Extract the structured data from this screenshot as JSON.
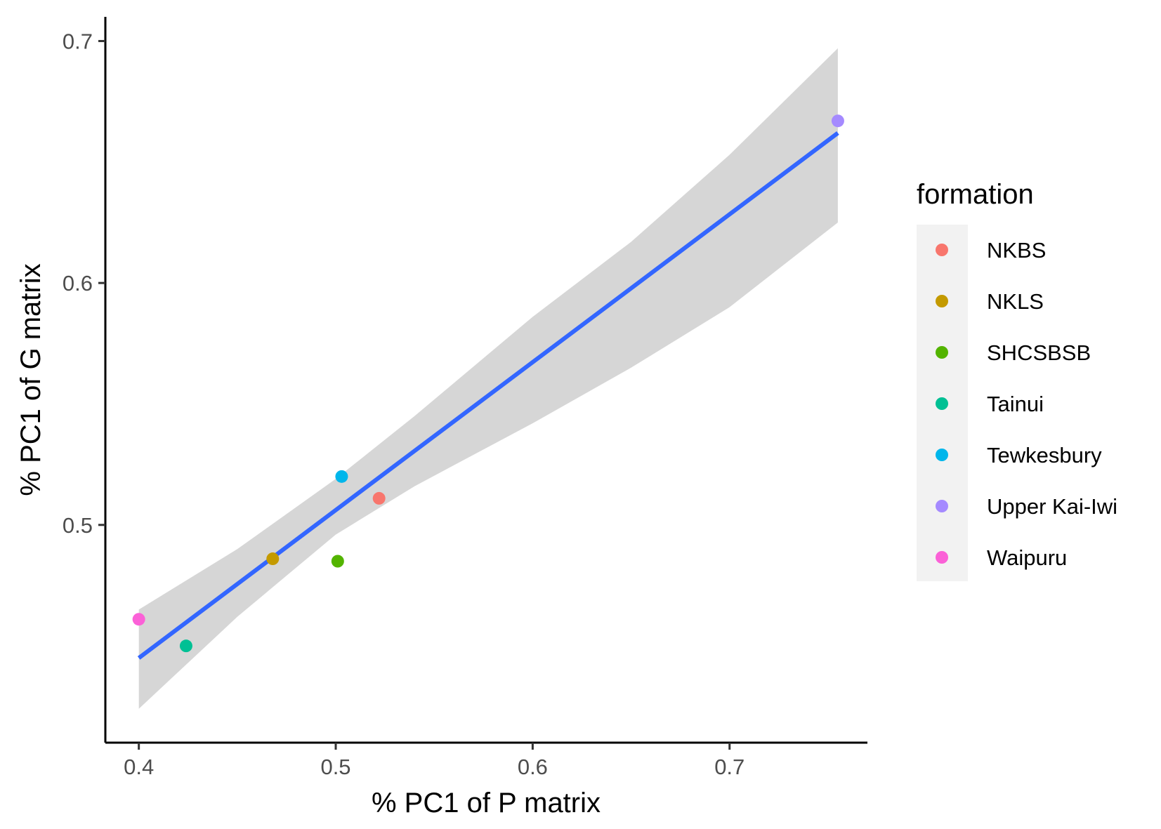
{
  "chart_data": {
    "type": "scatter",
    "xlabel": "% PC1 of P matrix",
    "ylabel": "% PC1 of G matrix",
    "xlim": [
      0.383,
      0.77
    ],
    "ylim": [
      0.41,
      0.71
    ],
    "x_ticks": [
      "0.4",
      "0.5",
      "0.6",
      "0.7"
    ],
    "y_ticks": [
      "0.5",
      "0.6",
      "0.7"
    ],
    "legend": {
      "title": "formation",
      "position": "right"
    },
    "series": [
      {
        "name": "NKBS",
        "color": "#F8766D",
        "x": [
          0.522
        ],
        "y": [
          0.511
        ]
      },
      {
        "name": "NKLS",
        "color": "#C49A00",
        "x": [
          0.468
        ],
        "y": [
          0.486
        ]
      },
      {
        "name": "SHCSBSB",
        "color": "#53B400",
        "x": [
          0.501
        ],
        "y": [
          0.485
        ]
      },
      {
        "name": "Tainui",
        "color": "#00C094",
        "x": [
          0.424
        ],
        "y": [
          0.45
        ]
      },
      {
        "name": "Tewkesbury",
        "color": "#00B6EB",
        "x": [
          0.503
        ],
        "y": [
          0.52
        ]
      },
      {
        "name": "Upper Kai-Iwi",
        "color": "#A58AFF",
        "x": [
          0.755
        ],
        "y": [
          0.667
        ]
      },
      {
        "name": "Waipuru",
        "color": "#FB61D7",
        "x": [
          0.4
        ],
        "y": [
          0.461
        ]
      }
    ],
    "regression": {
      "method": "linear",
      "color": "#3366FF",
      "band_color": "#999999",
      "x": [
        0.4,
        0.755
      ],
      "y": [
        0.445,
        0.662
      ],
      "band": {
        "x": [
          0.4,
          0.45,
          0.5,
          0.54,
          0.6,
          0.65,
          0.7,
          0.755
        ],
        "lower": [
          0.424,
          0.462,
          0.496,
          0.516,
          0.542,
          0.565,
          0.59,
          0.625
        ],
        "upper": [
          0.465,
          0.49,
          0.519,
          0.545,
          0.586,
          0.617,
          0.653,
          0.697
        ]
      }
    },
    "grid": false
  }
}
